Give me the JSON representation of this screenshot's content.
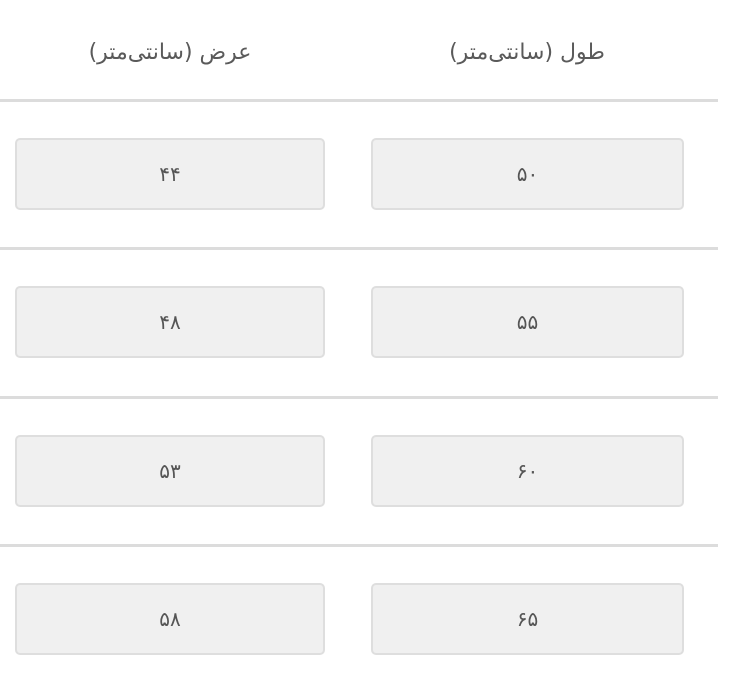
{
  "table": {
    "headers": {
      "length": "طول (سانتی‌متر)",
      "width": "عرض (سانتی‌متر)"
    },
    "rows": [
      {
        "length": "۵۰",
        "width": "۴۴"
      },
      {
        "length": "۵۵",
        "width": "۴۸"
      },
      {
        "length": "۶۰",
        "width": "۵۳"
      },
      {
        "length": "۶۵",
        "width": "۵۸"
      }
    ]
  }
}
